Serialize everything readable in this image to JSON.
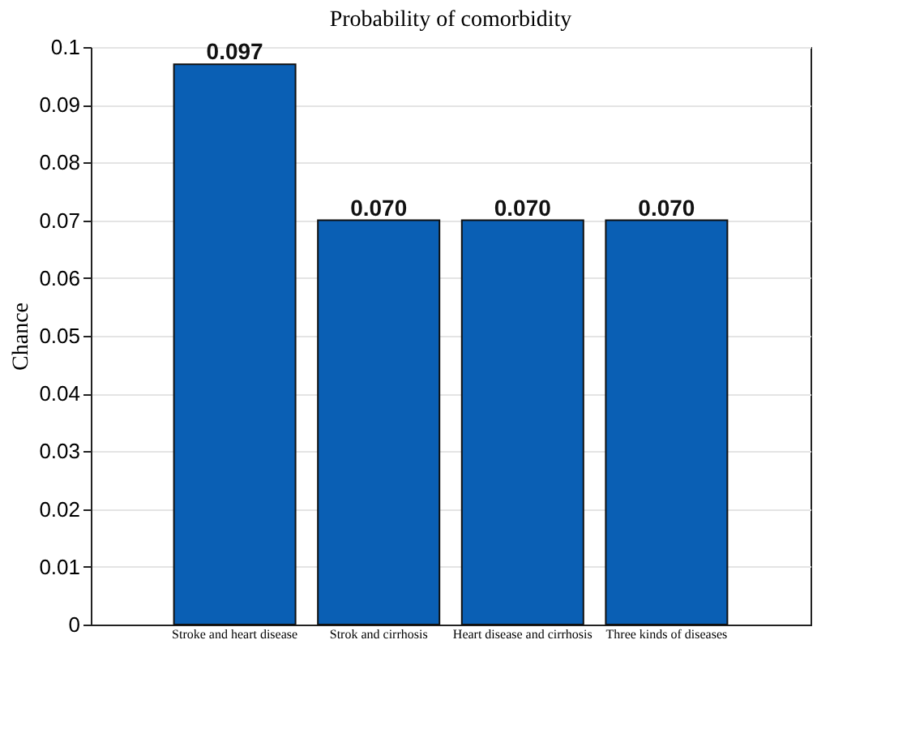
{
  "chart_data": {
    "type": "bar",
    "title": "Probability  of  comorbidity",
    "ylabel": "Chance",
    "categories": [
      "Stroke  and  heart  disease",
      "Strok  and  cirrhosis",
      "Heart  disease  and  cirrhosis",
      "Three  kinds  of  diseases"
    ],
    "values": [
      0.097,
      0.07,
      0.07,
      0.07
    ],
    "value_labels": [
      "0.097",
      "0.070",
      "0.070",
      "0.070"
    ],
    "color": "#0a5fb4",
    "ylim": [
      0,
      0.1
    ],
    "yticks": [
      0,
      0.01,
      0.02,
      0.03,
      0.04,
      0.05,
      0.06,
      0.07,
      0.08,
      0.09,
      0.1
    ],
    "grid": "y"
  }
}
